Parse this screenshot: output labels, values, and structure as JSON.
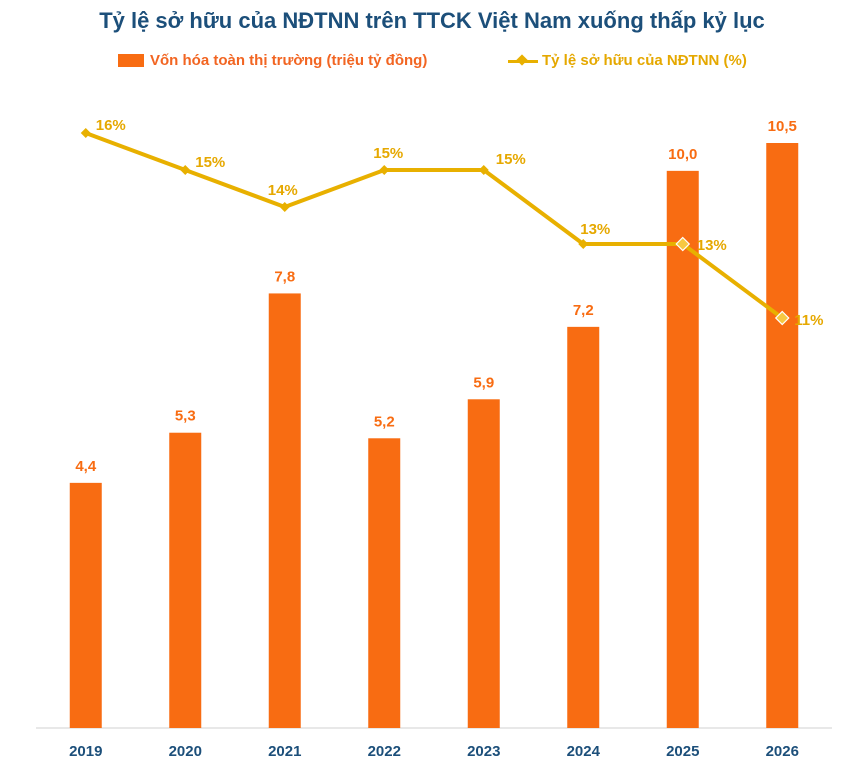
{
  "chart_data": {
    "type": "bar",
    "title": "Tỷ lệ sở hữu của NĐTNN trên TTCK Việt Nam xuống thấp kỷ lục",
    "categories": [
      "2019",
      "2020",
      "2021",
      "2022",
      "2023",
      "2024",
      "2025",
      "2026"
    ],
    "series": [
      {
        "name": "Vốn hóa toàn thị trường (triệu tỷ đồng)",
        "kind": "bar",
        "color": "#f86c12",
        "values": [
          4.4,
          5.3,
          7.8,
          5.2,
          5.9,
          7.2,
          10.0,
          10.5
        ],
        "labels": [
          "4,4",
          "5,3",
          "7,8",
          "5,2",
          "5,9",
          "7,2",
          "10,0",
          "10,5"
        ]
      },
      {
        "name": "Tỷ lệ sở hữu của NĐTNN (%)",
        "kind": "line",
        "color": "#e8b000",
        "values": [
          16,
          15,
          14,
          15,
          15,
          13,
          13,
          11
        ],
        "labels": [
          "16%",
          "15%",
          "14%",
          "15%",
          "15%",
          "13%",
          "13%",
          "11%"
        ]
      }
    ],
    "bar_ylim": [
      0,
      11.2
    ],
    "line_ylim": [
      0,
      22
    ],
    "grid": false,
    "legend_position": "top"
  }
}
